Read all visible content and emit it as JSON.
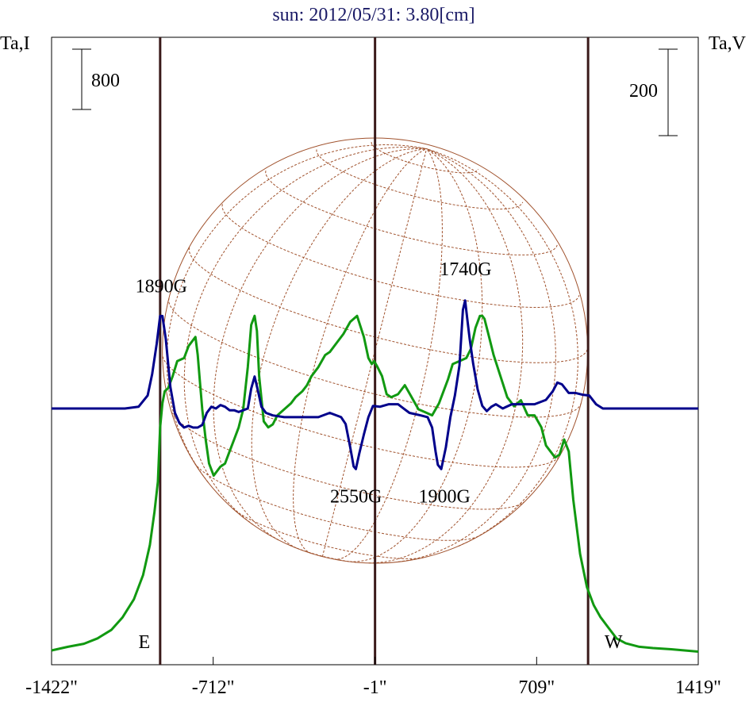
{
  "chart_data": {
    "type": "line",
    "title": "sun: 2012/05/31: 3.80[cm]",
    "ylabel_left": "Ta,I",
    "ylabel_right": "Ta,V",
    "xlim": [
      -1422,
      1419
    ],
    "x_ticks": [
      {
        "value": -1422,
        "label": "-1422\""
      },
      {
        "value": -712,
        "label": "-712\""
      },
      {
        "value": -1,
        "label": "-1\""
      },
      {
        "value": 709,
        "label": "709\""
      },
      {
        "value": 1419,
        "label": "1419\""
      }
    ],
    "scale_bars": {
      "left": {
        "label": "800",
        "amount": 800
      },
      "right": {
        "label": "200",
        "amount": 200
      }
    },
    "limb_markers": [
      {
        "label": "E",
        "x": -945
      },
      {
        "label": "W",
        "x": 935
      }
    ],
    "vertical_lines": [
      -945,
      -1,
      935
    ],
    "series": [
      {
        "key": "I",
        "color": "#119911",
        "unit_scale": 800,
        "x": [
          -1422,
          -1350,
          -1280,
          -1220,
          -1160,
          -1110,
          -1060,
          -1020,
          -990,
          -970,
          -955,
          -945,
          -935,
          -925,
          -910,
          -890,
          -870,
          -840,
          -820,
          -800,
          -790,
          -780,
          -770,
          -760,
          -745,
          -730,
          -710,
          -690,
          -680,
          -660,
          -640,
          -620,
          -600,
          -580,
          -560,
          -545,
          -530,
          -520,
          -510,
          -490,
          -470,
          -450,
          -430,
          -400,
          -370,
          -350,
          -320,
          -300,
          -280,
          -250,
          -220,
          -200,
          -170,
          -140,
          -110,
          -80,
          -50,
          -30,
          -15,
          -5,
          10,
          30,
          50,
          70,
          100,
          130,
          160,
          190,
          220,
          250,
          280,
          300,
          320,
          340,
          370,
          400,
          420,
          440,
          460,
          470,
          480,
          500,
          520,
          550,
          580,
          610,
          640,
          670,
          700,
          730,
          750,
          770,
          790,
          810,
          830,
          850,
          870,
          900,
          930,
          960,
          990,
          1020,
          1060,
          1100,
          1160,
          1220,
          1300,
          1419
        ],
        "y": [
          0.0,
          0.06,
          0.11,
          0.2,
          0.34,
          0.55,
          0.85,
          1.25,
          1.75,
          2.3,
          2.8,
          3.7,
          4.1,
          4.3,
          4.35,
          4.55,
          4.8,
          4.85,
          5.05,
          5.15,
          5.2,
          4.9,
          4.45,
          4.0,
          3.5,
          3.1,
          2.9,
          3.0,
          3.05,
          3.1,
          3.3,
          3.5,
          3.7,
          4.0,
          4.7,
          5.4,
          5.55,
          5.3,
          4.55,
          3.8,
          3.7,
          3.75,
          3.9,
          4.0,
          4.1,
          4.2,
          4.3,
          4.4,
          4.55,
          4.7,
          4.9,
          4.95,
          5.1,
          5.25,
          5.45,
          5.55,
          5.2,
          4.85,
          4.75,
          4.8,
          4.7,
          4.55,
          4.25,
          4.2,
          4.25,
          4.4,
          4.2,
          4.0,
          3.95,
          3.9,
          4.1,
          4.3,
          4.5,
          4.75,
          4.8,
          4.85,
          5.0,
          5.35,
          5.55,
          5.55,
          5.5,
          5.2,
          4.9,
          4.55,
          4.2,
          4.05,
          4.15,
          3.9,
          3.9,
          3.7,
          3.4,
          3.3,
          3.2,
          3.25,
          3.5,
          3.3,
          2.5,
          1.6,
          1.05,
          0.75,
          0.55,
          0.4,
          0.2,
          0.12,
          0.06,
          0.04,
          0.02,
          -0.02
        ]
      },
      {
        "key": "V",
        "color": "#00008b",
        "unit_scale": 200,
        "x": [
          -1422,
          -1250,
          -1100,
          -1040,
          -1000,
          -980,
          -960,
          -945,
          -935,
          -920,
          -900,
          -880,
          -860,
          -840,
          -820,
          -800,
          -780,
          -760,
          -740,
          -720,
          -700,
          -680,
          -660,
          -640,
          -620,
          -600,
          -580,
          -560,
          -545,
          -530,
          -515,
          -500,
          -480,
          -450,
          -400,
          -350,
          -300,
          -250,
          -200,
          -150,
          -130,
          -110,
          -95,
          -85,
          -70,
          -50,
          -30,
          -10,
          20,
          60,
          100,
          150,
          200,
          230,
          250,
          265,
          275,
          290,
          310,
          330,
          350,
          370,
          385,
          395,
          405,
          415,
          430,
          450,
          470,
          490,
          510,
          530,
          560,
          600,
          650,
          700,
          750,
          780,
          800,
          820,
          850,
          880,
          910,
          940,
          970,
          1000,
          1050,
          1100,
          1200,
          1300,
          1419
        ],
        "y": [
          0.0,
          0.0,
          0.0,
          0.02,
          0.15,
          0.4,
          0.75,
          1.07,
          1.07,
          0.8,
          0.25,
          -0.05,
          -0.17,
          -0.22,
          -0.2,
          -0.22,
          -0.22,
          -0.19,
          -0.05,
          0.02,
          0.0,
          0.04,
          0.02,
          -0.02,
          -0.02,
          -0.04,
          -0.02,
          0.0,
          0.23,
          0.37,
          0.2,
          0.02,
          -0.05,
          -0.08,
          -0.1,
          -0.1,
          -0.1,
          -0.1,
          -0.05,
          -0.1,
          -0.18,
          -0.45,
          -0.67,
          -0.7,
          -0.52,
          -0.3,
          -0.1,
          0.03,
          0.02,
          0.05,
          0.05,
          -0.05,
          -0.08,
          -0.1,
          -0.22,
          -0.5,
          -0.65,
          -0.7,
          -0.45,
          -0.1,
          0.15,
          0.5,
          1.14,
          1.25,
          1.02,
          0.8,
          0.52,
          0.22,
          0.03,
          -0.03,
          0.02,
          0.05,
          0.0,
          0.05,
          0.05,
          0.05,
          0.1,
          0.2,
          0.3,
          0.28,
          0.18,
          0.18,
          0.16,
          0.15,
          0.05,
          0.0,
          0.0,
          0.0,
          0.0,
          0.0,
          0.0
        ]
      }
    ],
    "annotations": [
      {
        "text": "1890G",
        "x": -940,
        "y": 1.07
      },
      {
        "text": "1740G",
        "x": 380,
        "y": 1.25
      },
      {
        "text": "2550G",
        "x": -95,
        "y": -0.7
      },
      {
        "text": "1900G",
        "x": 290,
        "y": -0.7
      }
    ],
    "disk_overlay": {
      "shape": "heliographic-grid",
      "color": "#a0522d"
    }
  },
  "colors": {
    "title": "#1a1a66",
    "vertical_line": "#3a1a1a",
    "axes": "#000000",
    "disk": "#a0522d"
  }
}
